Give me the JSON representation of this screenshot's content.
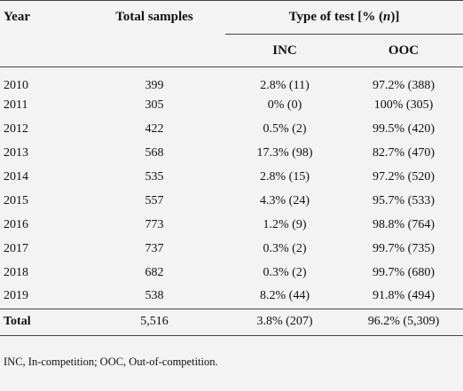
{
  "table": {
    "header": {
      "year": "Year",
      "total": "Total samples",
      "type_before": "Type of test [% (",
      "type_italic": "n",
      "type_after": ")]",
      "inc": "INC",
      "ooc": "OOC"
    },
    "rows": [
      [
        "2010",
        "399",
        "2.8% (11)",
        "97.2% (388)"
      ],
      [
        "2011",
        "305",
        "0% (0)",
        "100% (305)"
      ],
      [
        "2012",
        "422",
        "0.5% (2)",
        "99.5% (420)"
      ],
      [
        "2013",
        "568",
        "17.3% (98)",
        "82.7% (470)"
      ],
      [
        "2014",
        "535",
        "2.8% (15)",
        "97.2% (520)"
      ],
      [
        "2015",
        "557",
        "4.3% (24)",
        "95.7% (533)"
      ],
      [
        "2016",
        "773",
        "1.2% (9)",
        "98.8% (764)"
      ],
      [
        "2017",
        "737",
        "0.3% (2)",
        "99.7% (735)"
      ],
      [
        "2018",
        "682",
        "0.3% (2)",
        "99.7% (680)"
      ],
      [
        "2019",
        "538",
        "8.2% (44)",
        "91.8% (494)"
      ]
    ],
    "total": [
      "Total",
      "5,516",
      "3.8% (207)",
      "96.2% (5,309)"
    ],
    "footnote": "INC, In-competition; OOC, Out-of-competition."
  }
}
